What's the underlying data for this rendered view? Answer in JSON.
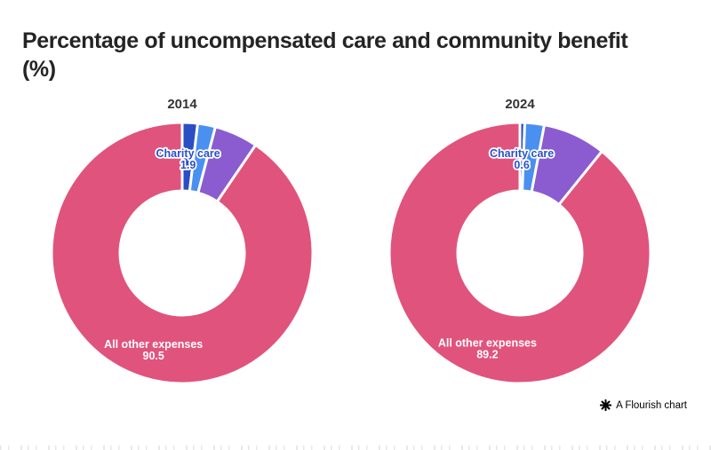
{
  "page": {
    "title": "Percentage of uncompensated care and community benefit (%)",
    "background_color": "#ffffff",
    "title_color": "#242424"
  },
  "attribution": {
    "icon": "flourish-star-icon",
    "label": "A Flourish chart",
    "color": "#000000"
  },
  "palette": {
    "charity_care_blue": "#2b4ec5",
    "unlabeled_light_blue": "#4a90f0",
    "unlabeled_purple": "#8a5cd0",
    "all_other_expenses_pink": "#e0537d",
    "facet_title_color": "#333333",
    "slice_gap_color": "#ffffff",
    "inner_label_white": "#ffffff",
    "charity_label_blue": "#2b50c8"
  },
  "chart_data": [
    {
      "type": "pie",
      "subtype": "donut",
      "facet_title": "2014",
      "units": "%",
      "start_angle_deg": 0,
      "direction": "clockwise",
      "slices": [
        {
          "label": "Charity care",
          "value": 1.9,
          "color": "#2b4ec5",
          "show_label": true,
          "label_color": "#2b50c8",
          "label_halo": "#ffffff",
          "estimated": false
        },
        {
          "label": "",
          "value": 2.2,
          "color": "#4a90f0",
          "show_label": false,
          "estimated": true
        },
        {
          "label": "",
          "value": 5.4,
          "color": "#8a5cd0",
          "show_label": false,
          "estimated": true
        },
        {
          "label": "All other expenses",
          "value": 90.5,
          "color": "#e0537d",
          "show_label": true,
          "label_color": "#ffffff",
          "estimated": false
        }
      ]
    },
    {
      "type": "pie",
      "subtype": "donut",
      "facet_title": "2024",
      "units": "%",
      "start_angle_deg": 0,
      "direction": "clockwise",
      "slices": [
        {
          "label": "Charity care",
          "value": 0.6,
          "color": "#2b4ec5",
          "show_label": true,
          "label_color": "#2b50c8",
          "label_halo": "#ffffff",
          "estimated": false
        },
        {
          "label": "",
          "value": 2.4,
          "color": "#4a90f0",
          "show_label": false,
          "estimated": true
        },
        {
          "label": "",
          "value": 7.8,
          "color": "#8a5cd0",
          "show_label": false,
          "estimated": true
        },
        {
          "label": "All other expenses",
          "value": 89.2,
          "color": "#e0537d",
          "show_label": true,
          "label_color": "#ffffff",
          "estimated": false
        }
      ]
    }
  ]
}
